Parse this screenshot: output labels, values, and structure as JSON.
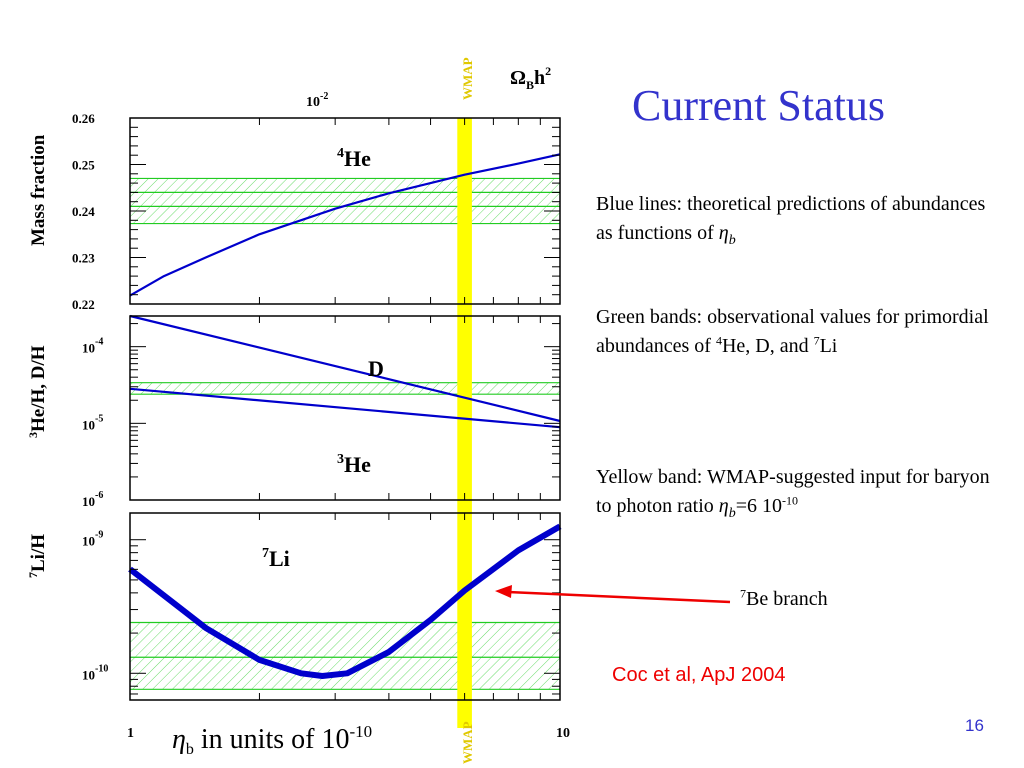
{
  "slide": {
    "title": "Current Status",
    "page_number": "16",
    "para_blue": "Blue lines: theoretical predictions of abundances as functions of ",
    "para_green": "Green bands: observational values for primordial abundances of ",
    "para_green_end": "He, D, and ",
    "para_yellow": "Yellow band: WMAP-suggested input for baryon to photon ratio ",
    "eta_value": "=6 10",
    "be_branch": "Be branch",
    "citation": "Coc et al, ApJ 2004"
  },
  "colors": {
    "title": "#3333cc",
    "theory_line": "#0000cc",
    "obs_band": "#22cc22",
    "wmap_band": "#ffff00",
    "arrow": "#ee0000",
    "wmap_label": "#e0c800"
  },
  "chart_data": [
    {
      "type": "line",
      "panel": "helium-4",
      "ylabel": "Mass fraction",
      "curve_label": "He",
      "curve_label_mass": "4",
      "x_scale": "log",
      "xlim": [
        1,
        10
      ],
      "ylim": [
        0.22,
        0.26
      ],
      "y_ticks": [
        "0.22",
        "0.23",
        "0.24",
        "0.25",
        "0.26"
      ],
      "top_axis_label": "Ω_B h²",
      "top_tick_label": "10 -2",
      "series": [
        {
          "x": [
            1,
            1.2,
            1.5,
            2,
            3,
            4,
            5,
            6,
            8,
            10
          ],
          "y": [
            0.2218,
            0.226,
            0.23,
            0.235,
            0.2405,
            0.2438,
            0.246,
            0.2478,
            0.2502,
            0.2522
          ]
        }
      ],
      "obs_band": [
        0.2373,
        0.247
      ],
      "obs_band_lines": [
        0.2373,
        0.241,
        0.244,
        0.247
      ]
    },
    {
      "type": "line",
      "panel": "deuterium-helium-3",
      "ylabel": "He/H, D/H",
      "ylabel_mass": "3",
      "x_scale": "log",
      "y_scale": "log",
      "xlim": [
        1,
        10
      ],
      "y_log_range": [
        -6,
        -3.6
      ],
      "y_ticks": [
        {
          "base": "10",
          "exp": "-4",
          "value": -4
        },
        {
          "base": "10",
          "exp": "-5",
          "value": -5
        },
        {
          "base": "10",
          "exp": "-6",
          "value": -6
        }
      ],
      "series": [
        {
          "label": "D",
          "label_mass": "",
          "x": [
            1,
            10
          ],
          "y_log10": [
            -3.6,
            -4.97
          ]
        },
        {
          "label": "He",
          "label_mass": "3",
          "x": [
            1,
            10
          ],
          "y_log10": [
            -4.55,
            -5.05
          ]
        }
      ],
      "obs_band_log10": [
        -4.62,
        -4.47
      ]
    },
    {
      "type": "line",
      "panel": "lithium-7",
      "ylabel": "Li/H",
      "ylabel_mass": "7",
      "curve_label": "Li",
      "curve_label_mass": "7",
      "x_scale": "log",
      "y_scale": "log",
      "xlim": [
        1,
        10
      ],
      "y_log_range": [
        -10.2,
        -8.8
      ],
      "y_ticks": [
        {
          "base": "10",
          "exp": "-9",
          "value": -9
        },
        {
          "base": "10",
          "exp": "-10",
          "value": -10
        }
      ],
      "x_tick_labels": [
        "1",
        "10"
      ],
      "xlabel": "η_b in units of 10^-10",
      "series": [
        {
          "x": [
            1,
            1.5,
            2,
            2.5,
            2.8,
            3.2,
            4,
            5,
            6,
            8,
            10
          ],
          "y_log10": [
            -9.22,
            -9.66,
            -9.9,
            -10.0,
            -10.02,
            -10.0,
            -9.84,
            -9.6,
            -9.38,
            -9.08,
            -8.9
          ]
        }
      ],
      "obs_band_log10": [
        -10.12,
        -9.62
      ],
      "obs_band_lines_log10": [
        -10.12,
        -9.88,
        -9.62
      ]
    }
  ],
  "wmap": {
    "label": "WMAP",
    "eta": 6,
    "band_halfwidth_log10": 0.017
  },
  "axis_text": {
    "xlabel_eta": "η",
    "xlabel_sub": "b",
    "xlabel_rest": " in units of 10",
    "xlabel_exp": "-10",
    "x_min": "1",
    "x_max": "10",
    "top_omega": "Ω",
    "top_B": "B",
    "top_h": "h",
    "top_2": "2",
    "top_tick_base": "10",
    "top_tick_exp": "-2"
  }
}
